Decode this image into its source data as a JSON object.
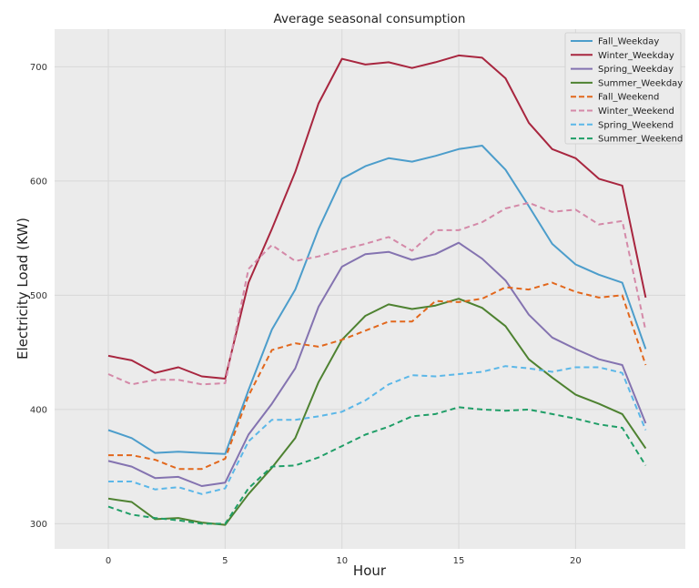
{
  "chart_data": {
    "type": "line",
    "title": "Average seasonal consumption",
    "xlabel": "Hour",
    "ylabel": "Electricity Load (KW)",
    "xlim": [
      -2.3,
      24.7
    ],
    "ylim": [
      278,
      733
    ],
    "xticks": [
      0,
      5,
      10,
      15,
      20
    ],
    "yticks": [
      300,
      400,
      500,
      600,
      700
    ],
    "grid": true,
    "legend_position": "top-right",
    "x": [
      0,
      1,
      2,
      3,
      4,
      5,
      6,
      7,
      8,
      9,
      10,
      11,
      12,
      13,
      14,
      15,
      16,
      17,
      18,
      19,
      20,
      21,
      22,
      23
    ],
    "series": [
      {
        "name": "Fall_Weekday",
        "color": "#348ABD",
        "style": "solid",
        "values": [
          382,
          375,
          362,
          363,
          362,
          361,
          417,
          470,
          505,
          558,
          602,
          613,
          620,
          617,
          622,
          628,
          631,
          610,
          578,
          545,
          527,
          518,
          511,
          453
        ]
      },
      {
        "name": "Winter_Weekday",
        "color": "#A60628",
        "style": "solid",
        "values": [
          447,
          443,
          432,
          437,
          429,
          427,
          511,
          558,
          608,
          668,
          707,
          702,
          704,
          699,
          704,
          710,
          708,
          690,
          651,
          628,
          620,
          602,
          596,
          498
        ]
      },
      {
        "name": "Spring_Weekday",
        "color": "#7A68A6",
        "style": "solid",
        "values": [
          355,
          350,
          340,
          341,
          333,
          336,
          378,
          405,
          436,
          490,
          525,
          536,
          538,
          531,
          536,
          546,
          532,
          513,
          483,
          463,
          453,
          444,
          439,
          388
        ]
      },
      {
        "name": "Summer_Weekday",
        "color": "#467821",
        "style": "solid",
        "values": [
          322,
          319,
          304,
          305,
          301,
          299,
          326,
          349,
          375,
          424,
          461,
          482,
          492,
          488,
          491,
          497,
          489,
          473,
          444,
          428,
          413,
          405,
          396,
          366
        ]
      },
      {
        "name": "Fall_Weekend",
        "color": "#E15F0A",
        "style": "dashed",
        "values": [
          360,
          360,
          356,
          348,
          348,
          357,
          412,
          452,
          458,
          455,
          461,
          469,
          477,
          477,
          495,
          494,
          497,
          507,
          505,
          511,
          503,
          498,
          500,
          439
        ]
      },
      {
        "name": "Winter_Weekend",
        "color": "#CF4457",
        "style": "dashed",
        "values": [
          431,
          422,
          426,
          426,
          422,
          423,
          523,
          544,
          530,
          534,
          540,
          545,
          551,
          539,
          557,
          557,
          564,
          576,
          581,
          573,
          575,
          562,
          565,
          469
        ]
      },
      {
        "name": "Spring_Weekend",
        "color": "#188487",
        "style": "dashed",
        "values": [
          337,
          337,
          330,
          332,
          326,
          331,
          372,
          391,
          391,
          394,
          398,
          408,
          422,
          430,
          429,
          431,
          433,
          438,
          436,
          433,
          437,
          437,
          432,
          382
        ]
      },
      {
        "name": "Summer_Weekend",
        "color": "#20A36A",
        "style": "dashed",
        "values": [
          315,
          308,
          305,
          303,
          300,
          300,
          331,
          350,
          351,
          358,
          368,
          378,
          385,
          394,
          396,
          402,
          400,
          399,
          400,
          396,
          392,
          387,
          384,
          351
        ]
      }
    ]
  },
  "render_colors": {
    "Fall_Weekday": "#4C9DCB",
    "Winter_Weekday": "#A8263F",
    "Spring_Weekday": "#8473B0",
    "Summer_Weekday": "#4E8231",
    "Fall_Weekend": "#E2671C",
    "Winter_Weekend": "#D489A8",
    "Spring_Weekend": "#5BB7E8",
    "Summer_Weekend": "#1F9E67",
    "plot_background": "#EBEBEB",
    "grid": "#D8D8D8"
  }
}
